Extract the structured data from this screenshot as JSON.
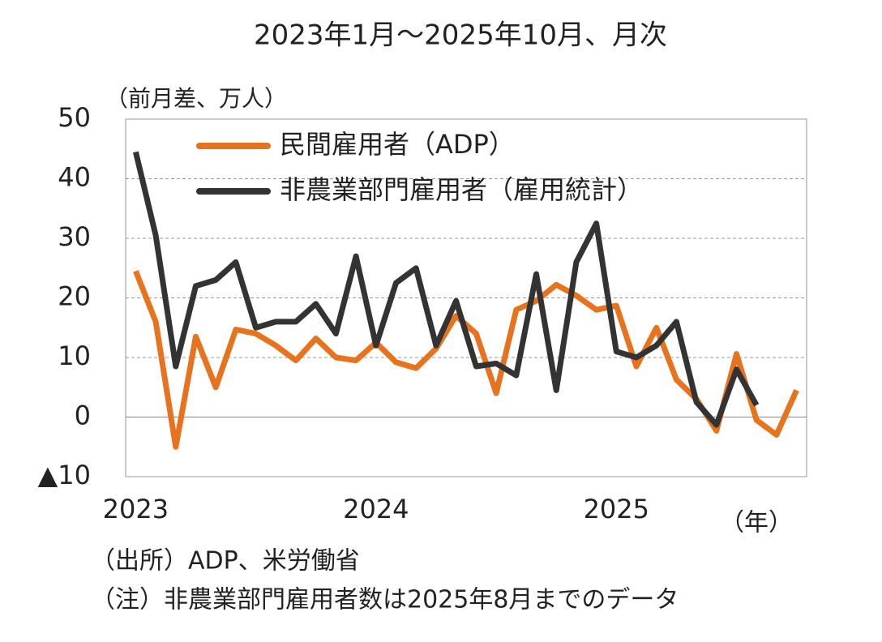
{
  "chart_data": {
    "type": "line",
    "title": "2023年1月～2025年10月、月次",
    "y_label": "（前月差、万人）",
    "x_label": "（年）",
    "notes": [
      "（出所）ADP、米労働省",
      "（注）非農業部門雇用者数は2025年8月までのデータ"
    ],
    "categories": [
      "2023",
      null,
      null,
      null,
      null,
      null,
      null,
      null,
      null,
      null,
      null,
      null,
      "2024",
      null,
      null,
      null,
      null,
      null,
      null,
      null,
      null,
      null,
      null,
      null,
      "2025",
      null,
      null,
      null,
      null,
      null,
      null,
      null,
      null,
      null
    ],
    "series": [
      {
        "name": "民間雇用者（ADP）",
        "color": "#e8731f",
        "values": [
          24.5,
          16,
          -5,
          13.5,
          5,
          14.7,
          14,
          12,
          9.5,
          13.2,
          10,
          9.5,
          12.5,
          9.2,
          8.2,
          11.5,
          17,
          14,
          4,
          18,
          19.5,
          22.2,
          20.4,
          18,
          18.7,
          8.5,
          15,
          6.3,
          3,
          -2.3,
          10.6,
          -0.5,
          -3,
          4.5
        ]
      },
      {
        "name": "非農業部門雇用者（雇用統計）",
        "color": "#333333",
        "values": [
          44.5,
          30.5,
          8.5,
          22,
          23,
          26,
          15,
          16,
          16,
          19,
          14,
          27,
          12,
          22.5,
          25,
          12,
          19.5,
          8.5,
          9,
          7,
          24,
          4.5,
          26,
          32.5,
          11,
          10,
          12,
          16,
          2.5,
          -1.3,
          8,
          2,
          null,
          null
        ]
      }
    ],
    "ylim": [
      -10,
      50
    ],
    "yticks": [
      {
        "value": -10,
        "label": "▲10"
      },
      0,
      10,
      20,
      30,
      40,
      50
    ],
    "negative_tick_color": "#e00000",
    "grid": true
  }
}
